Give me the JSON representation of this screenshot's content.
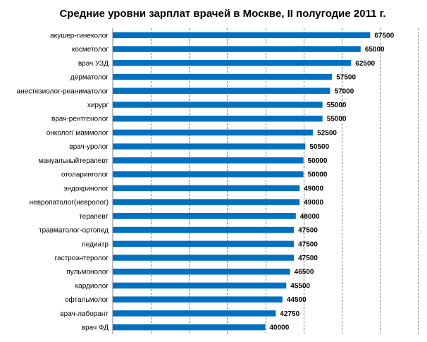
{
  "chart_data": {
    "type": "bar",
    "orientation": "horizontal",
    "title": "Средние уровни зарплат врачей в Москве,  II полугодие 2011 г.",
    "xlabel": "",
    "ylabel": "",
    "xlim": [
      0,
      80000
    ],
    "grid": true,
    "bar_color": "#0070c0",
    "categories": [
      "акушер-гинеколог",
      "косметолог",
      "врач УЗД",
      "дерматолог",
      "анестезиолог-реаниматолог",
      "хирург",
      "врач-рентгенолог",
      "онколог/ маммолог",
      "врач-уролог",
      "мануальныйтерапевт",
      "отоларинголог",
      "эндокринолог",
      "невропатолог(невролог)",
      "терапевт",
      "травматолог-ортопед",
      "педиатр",
      "гастроэнтеролог",
      "пульмонолог",
      "кардиолог",
      "офтальмолог",
      "врач-лаборант",
      "врач ФД"
    ],
    "values": [
      67500,
      65000,
      62500,
      57500,
      57000,
      55000,
      55000,
      52500,
      50500,
      50000,
      50000,
      49000,
      49000,
      48000,
      47500,
      47500,
      47500,
      46500,
      45500,
      44500,
      42750,
      40000
    ]
  }
}
